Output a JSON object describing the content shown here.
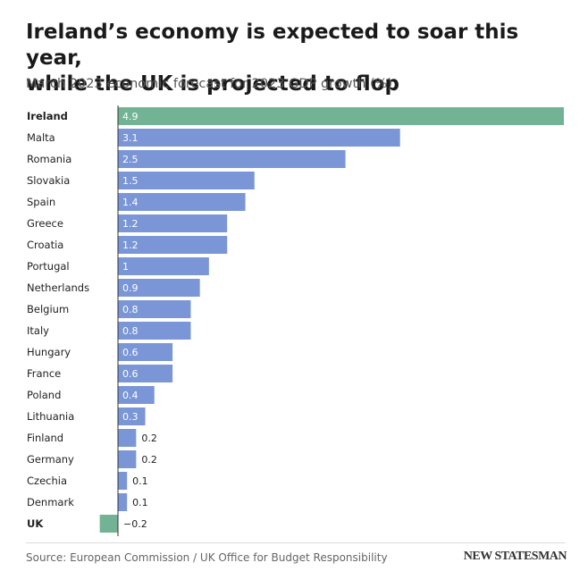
{
  "header": {
    "title_line1": "Ireland’s economy is expected to soar this year,",
    "title_line2": "while the UK is projected to flop",
    "subtitle": "March 2023 economic forecast for 2023 GDP growth (%)"
  },
  "footer": {
    "source": "Source: European Commission / UK Office for Budget Responsibility",
    "brand": "NEW STATESMAN"
  },
  "colors": {
    "highlight": "#72b396",
    "default": "#7a96d6",
    "axis": "#333333"
  },
  "chart_data": {
    "type": "bar",
    "orientation": "horizontal",
    "categories": [
      "Ireland",
      "Malta",
      "Romania",
      "Slovakia",
      "Spain",
      "Greece",
      "Croatia",
      "Portugal",
      "Netherlands",
      "Belgium",
      "Italy",
      "Hungary",
      "France",
      "Poland",
      "Lithuania",
      "Finland",
      "Germany",
      "Czechia",
      "Denmark",
      "UK"
    ],
    "values": [
      4.9,
      3.1,
      2.5,
      1.5,
      1.4,
      1.2,
      1.2,
      1,
      0.9,
      0.8,
      0.8,
      0.6,
      0.6,
      0.4,
      0.3,
      0.2,
      0.2,
      0.1,
      0.1,
      -0.2
    ],
    "labels": [
      "4.9",
      "3.1",
      "2.5",
      "1.5",
      "1.4",
      "1.2",
      "1.2",
      "1",
      "0.9",
      "0.8",
      "0.8",
      "0.6",
      "0.6",
      "0.4",
      "0.3",
      "0.2",
      "0.2",
      "0.1",
      "0.1",
      "−0.2"
    ],
    "highlighted": [
      "Ireland",
      "UK"
    ],
    "xlim": [
      -0.2,
      4.9
    ],
    "grid": false
  }
}
